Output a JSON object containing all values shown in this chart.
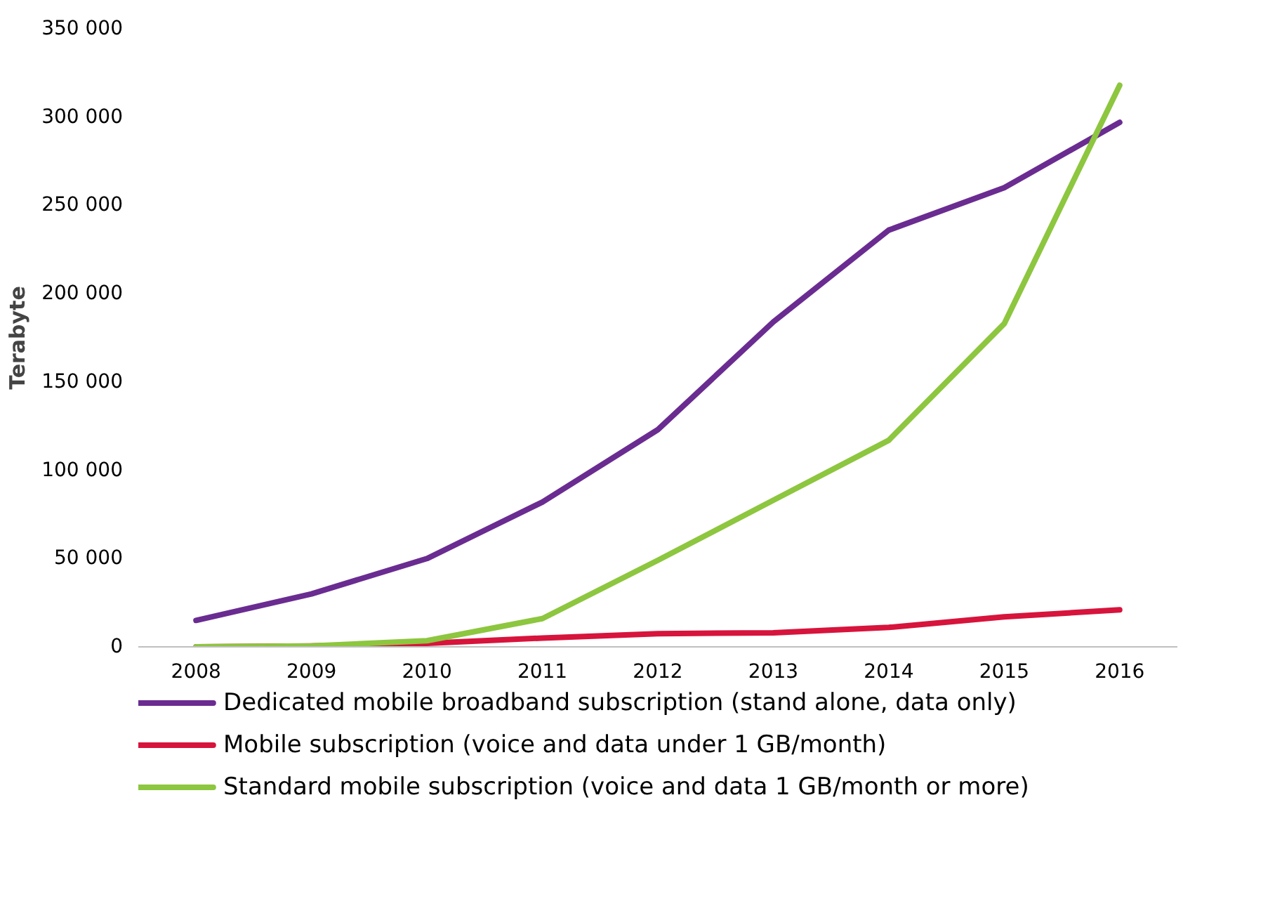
{
  "chart_data": {
    "type": "line",
    "ylabel": "Terabyte",
    "categories": [
      "2008",
      "2009",
      "2010",
      "2011",
      "2012",
      "2013",
      "2014",
      "2015",
      "2016"
    ],
    "series": [
      {
        "name": "Dedicated mobile broadband subscription (stand alone, data only)",
        "color": "#6a2c91",
        "values": [
          15000,
          30000,
          50000,
          82000,
          123000,
          184000,
          236000,
          260000,
          297000
        ]
      },
      {
        "name": "Mobile subscription (voice and data under 1 GB/month)",
        "color": "#d7143c",
        "values": [
          0,
          500,
          2000,
          5000,
          7500,
          8000,
          11000,
          17000,
          21000
        ]
      },
      {
        "name": "Standard mobile subscription (voice and data 1 GB/month or more)",
        "color": "#8dc63f",
        "values": [
          0,
          500,
          3500,
          16000,
          49000,
          83000,
          117000,
          183000,
          318000
        ]
      }
    ],
    "ylim": [
      0,
      350000
    ],
    "yticks": [
      {
        "value": 0,
        "label": "0"
      },
      {
        "value": 50000,
        "label": "50 000"
      },
      {
        "value": 100000,
        "label": "100 000"
      },
      {
        "value": 150000,
        "label": "150 000"
      },
      {
        "value": 200000,
        "label": "200 000"
      },
      {
        "value": 250000,
        "label": "250 000"
      },
      {
        "value": 300000,
        "label": "300 000"
      },
      {
        "value": 350000,
        "label": "350 000"
      }
    ],
    "grid": false,
    "legend": "bottom",
    "line_style": "solid"
  }
}
